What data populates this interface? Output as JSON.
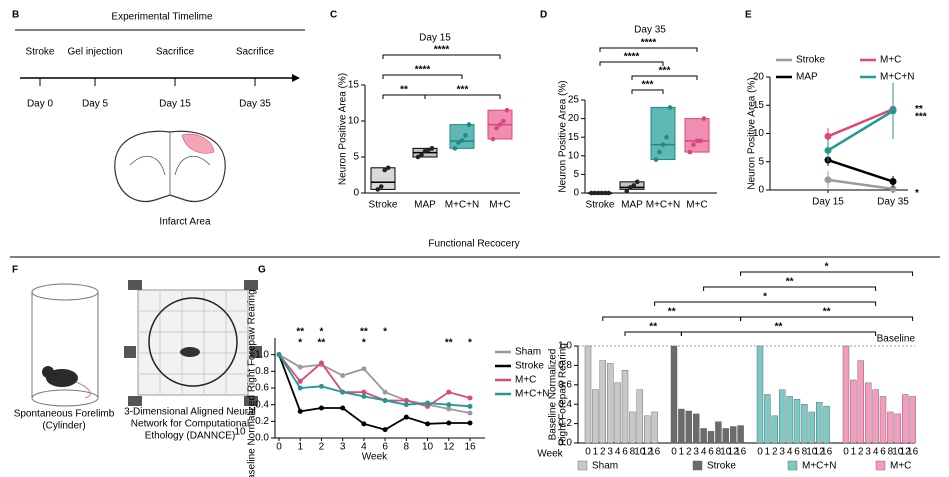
{
  "panel_letters": [
    "B",
    "C",
    "D",
    "E",
    "F",
    "G"
  ],
  "timeline": {
    "title": "Experimental Timelime",
    "events": [
      "Stroke",
      "Gel injection",
      "Sacrifice",
      "Sacrifice"
    ],
    "days": [
      "Day 0",
      "Day 5",
      "Day 15",
      "Day 35"
    ],
    "brain_label": "Infarct Area"
  },
  "section_title": "Functional Recocery",
  "illustrations": {
    "cylinder": [
      "Spontaneous Forelimb",
      "(Cylinder)"
    ],
    "dannce": [
      "3-Dimensional Aligned Neural",
      "Network for Computational",
      "Ethology (DANNCE)"
    ],
    "dannce_ref": "10"
  },
  "chart_data": [
    {
      "type": "box",
      "title": "Day 15",
      "ylabel": "Neuron Positive Area (%)",
      "categories": [
        "Stroke",
        "MAP",
        "M+C+N",
        "M+C"
      ],
      "colors": [
        "#d9d9d9",
        "#c4c4c4",
        "#5fb8b3",
        "#f28db2"
      ],
      "edge_colors": [
        "#000000",
        "#000000",
        "#1f8a84",
        "#d8467f"
      ],
      "q1": [
        0.5,
        5,
        6.2,
        7.5
      ],
      "median": [
        1.5,
        5.6,
        7.2,
        9.5
      ],
      "q3": [
        3.5,
        6.2,
        9.5,
        11.5
      ],
      "points": [
        [
          0.5,
          0.9,
          3.2,
          3.5
        ],
        [
          5,
          5.3,
          5.8,
          6,
          6.2
        ],
        [
          6.2,
          7,
          7.3,
          8,
          9.5
        ],
        [
          7.5,
          9,
          9.5,
          10,
          11.5
        ]
      ],
      "ylim": [
        0,
        15
      ],
      "yticks": [
        0,
        5,
        10,
        15
      ],
      "comparisons": [
        {
          "pair": [
            0,
            1
          ],
          "label": "**"
        },
        {
          "pair": [
            1,
            3
          ],
          "label": "***"
        },
        {
          "pair": [
            0,
            2
          ],
          "label": "****"
        },
        {
          "pair": [
            0,
            3
          ],
          "label": "****"
        }
      ]
    },
    {
      "type": "box",
      "title": "Day 35",
      "ylabel": "Neuron Positive Area (%)",
      "categories": [
        "Stroke",
        "MAP",
        "M+C+N",
        "M+C"
      ],
      "colors": [
        "#d9d9d9",
        "#c4c4c4",
        "#5fb8b3",
        "#f28db2"
      ],
      "edge_colors": [
        "#000000",
        "#000000",
        "#1f8a84",
        "#d8467f"
      ],
      "q1": [
        0,
        1,
        9,
        11
      ],
      "median": [
        0,
        1.5,
        13,
        14
      ],
      "q3": [
        0,
        3,
        23,
        20
      ],
      "points": [
        [
          0,
          0,
          0,
          0,
          0,
          0
        ],
        [
          0.5,
          1.5,
          2,
          3
        ],
        [
          9,
          11,
          13,
          15,
          23
        ],
        [
          11,
          13,
          14,
          14,
          20
        ]
      ],
      "ylim": [
        0,
        25
      ],
      "yticks": [
        0,
        5,
        10,
        15,
        20,
        25
      ],
      "comparisons": [
        {
          "pair": [
            1,
            2
          ],
          "label": "***"
        },
        {
          "pair": [
            1,
            3
          ],
          "label": "***"
        },
        {
          "pair": [
            0,
            2
          ],
          "label": "****"
        },
        {
          "pair": [
            0,
            3
          ],
          "label": "****"
        }
      ]
    },
    {
      "type": "line",
      "ylabel": "Neuron Positive Area (%)",
      "categories": [
        "Day 15",
        "Day 35"
      ],
      "series": [
        {
          "name": "Stroke",
          "color": "#9a9a9a",
          "values": [
            1.8,
            0.2
          ],
          "errors": [
            1.5,
            0.3
          ]
        },
        {
          "name": "MAP",
          "color": "#000000",
          "values": [
            5.3,
            1.5
          ],
          "errors": [
            1,
            1
          ]
        },
        {
          "name": "M+C",
          "color": "#e0457b",
          "values": [
            9.5,
            14.3
          ],
          "errors": [
            1.5,
            3
          ]
        },
        {
          "name": "M+C+N",
          "color": "#1f9a92",
          "values": [
            7,
            14
          ],
          "errors": [
            2,
            5
          ]
        }
      ],
      "ylim": [
        0,
        20
      ],
      "yticks": [
        0,
        5,
        10,
        15,
        20
      ],
      "annotations": [
        {
          "text": "**",
          "series": 2
        },
        {
          "text": "***",
          "series": 3
        },
        {
          "text": "*",
          "series": 1
        }
      ]
    },
    {
      "type": "line",
      "ylabel": "Baseline Normalized Right Forepaw Rearing",
      "xlabel": "Week",
      "categories": [
        0,
        1,
        2,
        3,
        4,
        6,
        8,
        10,
        12,
        16
      ],
      "series": [
        {
          "name": "Sham",
          "color": "#9a9a9a",
          "values": [
            1,
            0.85,
            0.88,
            0.75,
            0.83,
            0.55,
            0.45,
            0.4,
            0.35,
            0.3
          ]
        },
        {
          "name": "Stroke",
          "color": "#000000",
          "values": [
            1,
            0.32,
            0.36,
            0.36,
            0.17,
            0.1,
            0.25,
            0.17,
            0.18,
            0.18
          ]
        },
        {
          "name": "M+C",
          "color": "#e0457b",
          "values": [
            1,
            0.68,
            0.9,
            0.55,
            0.55,
            0.45,
            0.45,
            0.38,
            0.55,
            0.48
          ]
        },
        {
          "name": "M+C+N",
          "color": "#1f9a92",
          "values": [
            1,
            0.6,
            0.62,
            0.55,
            0.5,
            0.45,
            0.4,
            0.42,
            0.4,
            0.38
          ]
        }
      ],
      "ylim": [
        0,
        1.2
      ],
      "yticks": [
        {
          "value": 0,
          "label": "0.0"
        },
        {
          "value": 0.2,
          "label": "0.2"
        },
        {
          "value": 0.4,
          "label": "0.4"
        },
        {
          "value": 0.6,
          "label": "0.6"
        },
        {
          "value": 0.8,
          "label": "0.8"
        },
        {
          "value": 1,
          "label": "1.0"
        }
      ],
      "annotations": [
        {
          "text": "**",
          "series": 0,
          "index": 1
        },
        {
          "text": "*",
          "series": 0,
          "index": 2
        },
        {
          "text": "**",
          "series": 0,
          "index": 4
        },
        {
          "text": "*",
          "series": 0,
          "index": 5
        },
        {
          "text": "*",
          "series": 2,
          "index": 1
        },
        {
          "text": "**",
          "series": 2,
          "index": 2
        },
        {
          "text": "*",
          "series": 2,
          "index": 4
        },
        {
          "text": "**",
          "series": 2,
          "index": 8
        },
        {
          "text": "*",
          "series": 2,
          "index": 9
        }
      ]
    },
    {
      "type": "bar",
      "ylabel": [
        "Baseline Normalized",
        "Right Forepaw Rearing"
      ],
      "xlabel": "Week",
      "categories": [
        0,
        1,
        2,
        3,
        4,
        6,
        8,
        10,
        12,
        16
      ],
      "series": [
        {
          "name": "Sham",
          "color": "#c8c8c8",
          "values": [
            1,
            0.55,
            0.85,
            0.82,
            0.62,
            0.75,
            0.32,
            0.55,
            0.28,
            0.32
          ]
        },
        {
          "name": "Stroke",
          "color": "#6b6b6b",
          "values": [
            1,
            0.35,
            0.33,
            0.3,
            0.15,
            0.12,
            0.22,
            0.15,
            0.17,
            0.18
          ]
        },
        {
          "name": "M+C+N",
          "color": "#7ccac5",
          "values": [
            1,
            0.5,
            0.28,
            0.55,
            0.48,
            0.45,
            0.4,
            0.32,
            0.42,
            0.38
          ]
        },
        {
          "name": "M+C",
          "color": "#f59bbd",
          "values": [
            1,
            0.65,
            0.85,
            0.62,
            0.55,
            0.48,
            0.32,
            0.3,
            0.5,
            0.48
          ]
        }
      ],
      "baseline": 1,
      "baseline_label": "Baseline",
      "ylim": [
        0,
        1
      ],
      "yticks": [
        {
          "value": 0,
          "label": "0.0"
        },
        {
          "value": 0.2,
          "label": "0.2"
        },
        {
          "value": 0.4,
          "label": "0.4"
        },
        {
          "value": 0.6,
          "label": "0.6"
        },
        {
          "value": 0.8,
          "label": "0.8"
        },
        {
          "value": 1,
          "label": "1.0"
        }
      ],
      "comparisons": [
        {
          "pair": [
            [
              0,
              5
            ],
            [
              1,
              1
            ]
          ],
          "label": "**"
        },
        {
          "pair": [
            [
              1,
              1
            ],
            [
              3,
              4
            ]
          ],
          "label": "**"
        },
        {
          "pair": [
            [
              0,
              2
            ],
            [
              1,
              9
            ]
          ],
          "label": "**"
        },
        {
          "pair": [
            [
              1,
              9
            ],
            [
              3,
              9
            ]
          ],
          "label": "**"
        },
        {
          "pair": [
            [
              0,
              9
            ],
            [
              3,
              4
            ]
          ],
          "label": "*"
        },
        {
          "pair": [
            [
              1,
              4
            ],
            [
              3,
              4
            ]
          ],
          "label": "**"
        },
        {
          "pair": [
            [
              1,
              9
            ],
            [
              3,
              9
            ]
          ],
          "label": "*"
        }
      ]
    }
  ]
}
